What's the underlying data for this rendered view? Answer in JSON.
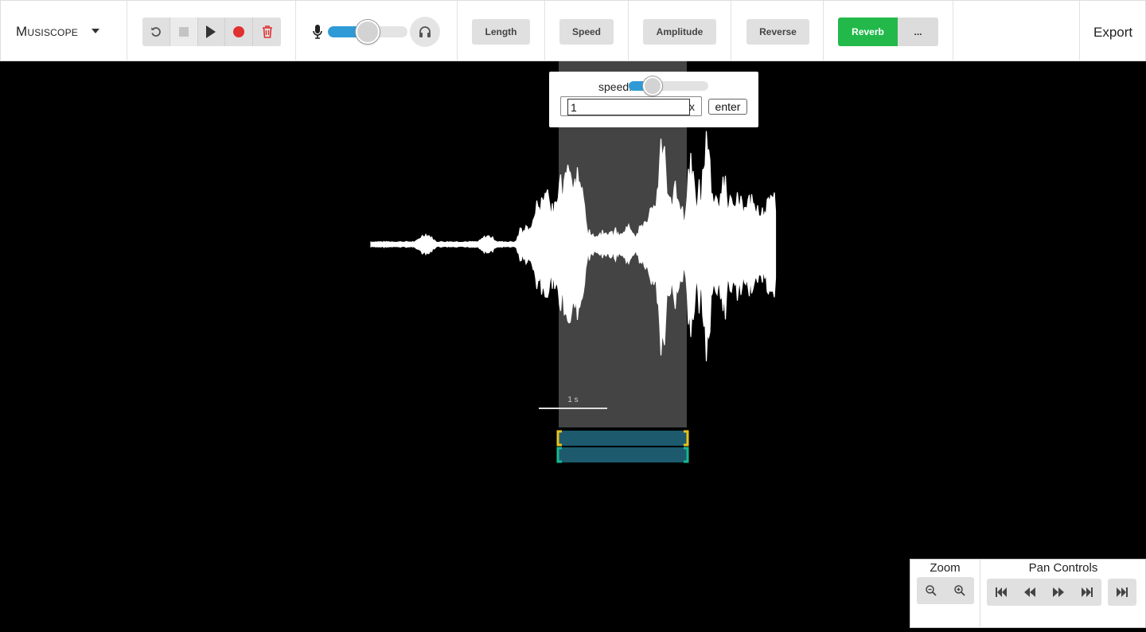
{
  "app": {
    "brand": "Musiscope",
    "export_label": "Export"
  },
  "transport": {
    "buttons": [
      "undo-icon",
      "stop-icon",
      "play-icon",
      "record-icon",
      "trash-icon"
    ],
    "record_color": "#e03131",
    "trash_color": "#e03131"
  },
  "volume": {
    "level": 0.5,
    "accent": "#2e9bd6"
  },
  "effects": {
    "length_label": "Length",
    "speed_label": "Speed",
    "amplitude_label": "Amplitude",
    "reverse_label": "Reverse",
    "reverb_label": "Reverb",
    "more_label": "...",
    "reverb_color": "#22b94a"
  },
  "speed_popup": {
    "label": "speed:",
    "slider_level": 0.3,
    "value": "1",
    "unit": "x",
    "enter_label": "enter"
  },
  "waveform": {
    "scale_label": "1 s",
    "selection_color": "#444444",
    "track_top_color": "#1d5a6e",
    "track_bottom_color": "#1d5a6e",
    "handle_top_color": "#e8c21b",
    "handle_bottom_color": "#14b890"
  },
  "zoom": {
    "title": "Zoom"
  },
  "pan": {
    "title": "Pan Controls"
  }
}
